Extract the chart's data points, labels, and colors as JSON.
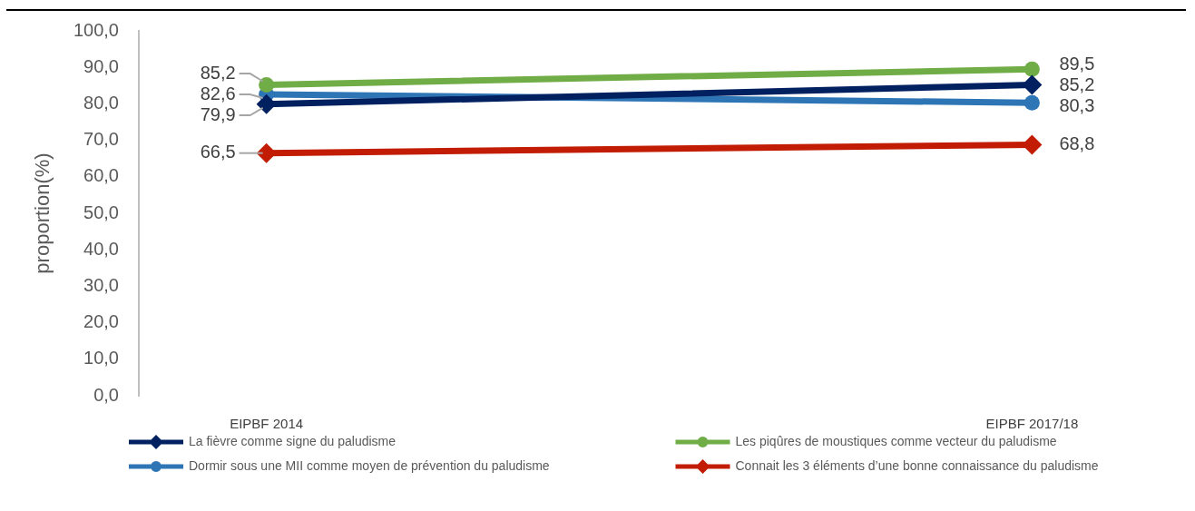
{
  "chart_data": {
    "type": "line",
    "ylabel": "proportion(%)",
    "categories": [
      "EIPBF 2014",
      "EIPBF 2017/18"
    ],
    "series": [
      {
        "name": "La fièvre comme signe du paludisme",
        "color": "#002060",
        "marker": "diamond",
        "values": [
          79.9,
          85.2
        ],
        "value_labels": [
          "79,9",
          "85,2"
        ]
      },
      {
        "name": "Les piqûres de moustiques comme vecteur du paludisme",
        "color": "#70ad47",
        "marker": "circle",
        "values": [
          85.2,
          89.5
        ],
        "value_labels": [
          "85,2",
          "89,5"
        ]
      },
      {
        "name": "Dormir sous une MII comme moyen de prévention du paludisme",
        "color": "#2e75b6",
        "marker": "circle",
        "values": [
          82.6,
          80.3
        ],
        "value_labels": [
          "82,6",
          "80,3"
        ]
      },
      {
        "name": "Connait les 3 éléments d’une bonne connaissance du paludisme",
        "color": "#c21d04",
        "marker": "diamond",
        "values": [
          66.5,
          68.8
        ],
        "value_labels": [
          "66,5",
          "68,8"
        ]
      }
    ],
    "ylim": [
      0,
      100
    ],
    "yticks": [
      {
        "value": 0,
        "label": "0,0"
      },
      {
        "value": 10,
        "label": "10,0"
      },
      {
        "value": 20,
        "label": "20,0"
      },
      {
        "value": 30,
        "label": "30,0"
      },
      {
        "value": 40,
        "label": "40,0"
      },
      {
        "value": 50,
        "label": "50,0"
      },
      {
        "value": 60,
        "label": "60,0"
      },
      {
        "value": 70,
        "label": "70,0"
      },
      {
        "value": 80,
        "label": "80,0"
      },
      {
        "value": 90,
        "label": "90,0"
      },
      {
        "value": 100,
        "label": "100,0"
      }
    ],
    "legend": "bottom"
  }
}
